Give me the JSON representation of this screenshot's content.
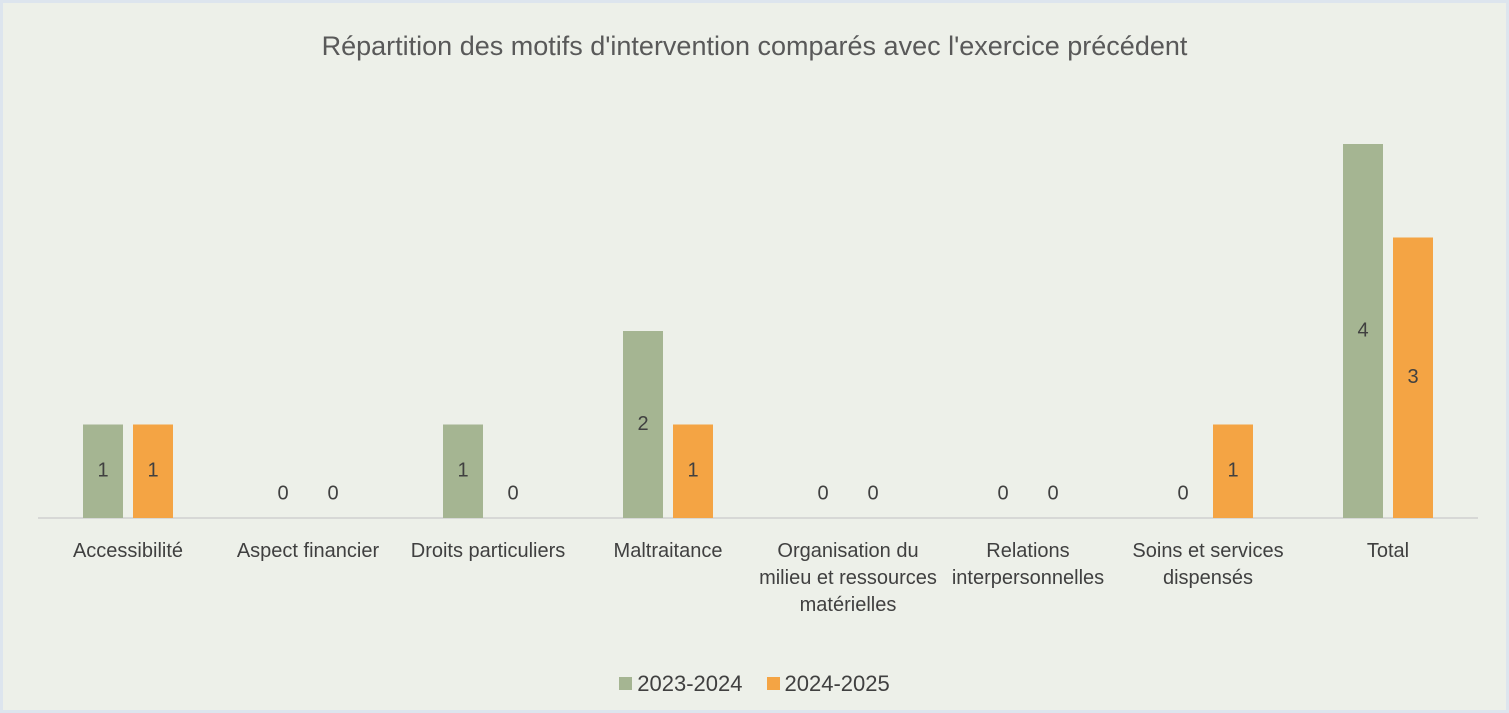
{
  "chart_data": {
    "type": "bar",
    "title": "Répartition des motifs d'intervention comparés avec l'exercice précédent",
    "categories": [
      "Accessibilité",
      "Aspect financier",
      "Droits particuliers",
      "Maltraitance",
      "Organisation du milieu et ressources matérielles",
      "Relations interpersonnelles",
      "Soins et services dispensés",
      "Total"
    ],
    "series": [
      {
        "name": "2023-2024",
        "color": "#a5b592",
        "values": [
          1,
          0,
          1,
          2,
          0,
          0,
          0,
          4
        ]
      },
      {
        "name": "2024-2025",
        "color": "#f4a444",
        "values": [
          1,
          0,
          0,
          1,
          0,
          0,
          1,
          3
        ]
      }
    ],
    "legend": "bottom",
    "grid": false
  }
}
